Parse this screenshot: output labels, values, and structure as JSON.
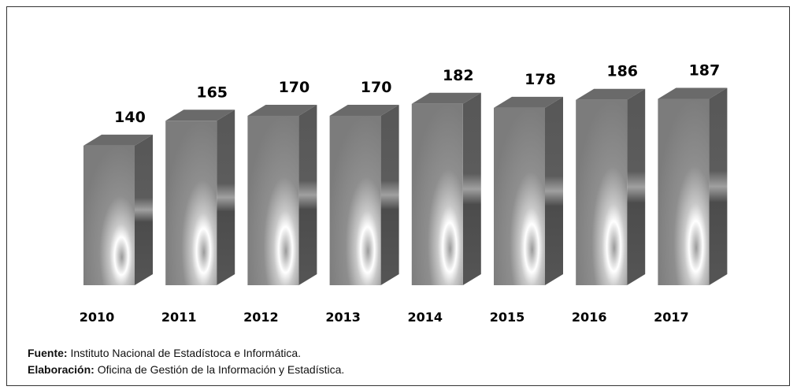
{
  "chart_data": {
    "type": "bar3d",
    "categories": [
      "2010",
      "2011",
      "2012",
      "2013",
      "2014",
      "2015",
      "2016",
      "2017"
    ],
    "values": [
      140,
      165,
      170,
      170,
      182,
      178,
      186,
      187
    ],
    "color": "#8a8a8a",
    "notes": [
      {
        "label": "Fuente:",
        "text": "Instituto Nacional de Estadístoca e Informática."
      },
      {
        "label": "Elaboración:",
        "text": "Oficina de Gestión de la Información y Estadística."
      }
    ]
  }
}
